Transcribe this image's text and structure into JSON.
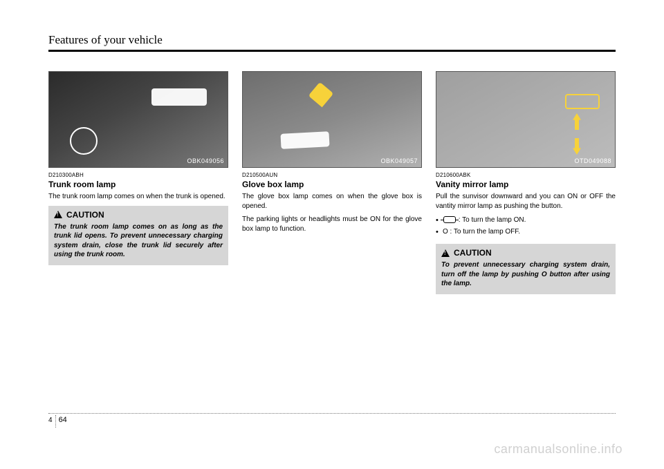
{
  "chapter_title": "Features of your vehicle",
  "page": {
    "chapter_number": "4",
    "page_number": "64"
  },
  "watermark": "carmanualsonline.info",
  "columns": [
    {
      "photo_id": "OBK049056",
      "ref_code": "D210300ABH",
      "heading": "Trunk room lamp",
      "paragraphs": [
        "The trunk room lamp comes on when the trunk is opened."
      ],
      "caution": {
        "label": "CAUTION",
        "text": "The trunk room lamp comes on as long as the trunk lid opens. To prevent unnecessary charging system drain, close the trunk lid securely after using the trunk room."
      }
    },
    {
      "photo_id": "OBK049057",
      "ref_code": "D210500AUN",
      "heading": "Glove box lamp",
      "paragraphs": [
        "The glove box lamp comes on when the glove box is opened.",
        "The parking lights or headlights must be ON for the glove box lamp to function."
      ]
    },
    {
      "photo_id": "OTD049088",
      "ref_code": "D210600ABK",
      "heading": "Vanity mirror lamp",
      "paragraphs": [
        "Pull the sunvisor downward and you can ON or OFF the vantity mirror lamp as pushing the button."
      ],
      "bullets": {
        "on_suffix": " : To turn the lamp ON.",
        "off": "O : To turn the lamp OFF."
      },
      "caution": {
        "label": "CAUTION",
        "text": "To prevent unnecessary charging system drain, turn off the lamp by pushing O button after using the lamp."
      }
    }
  ]
}
